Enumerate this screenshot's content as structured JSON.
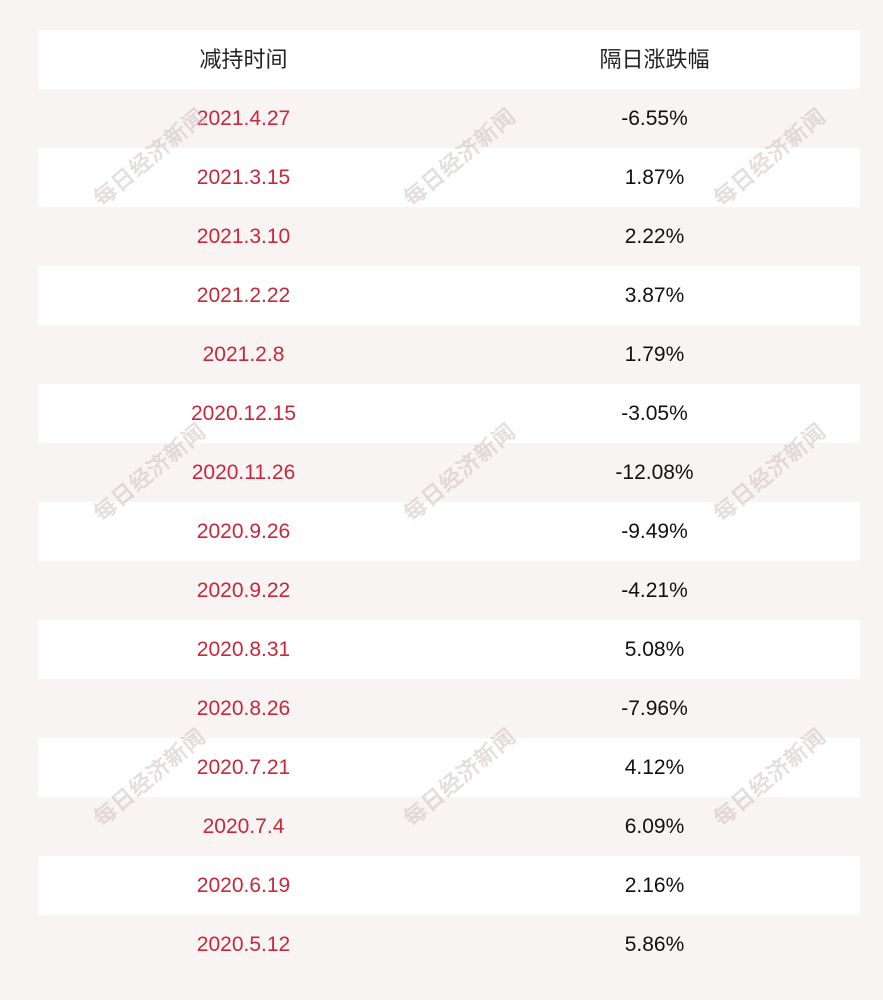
{
  "table": {
    "headers": {
      "date": "减持时间",
      "change": "隔日涨跌幅"
    },
    "rows": [
      {
        "date": "2021.4.27",
        "change": "-6.55%"
      },
      {
        "date": "2021.3.15",
        "change": "1.87%"
      },
      {
        "date": "2021.3.10",
        "change": "2.22%"
      },
      {
        "date": "2021.2.22",
        "change": "3.87%"
      },
      {
        "date": "2021.2.8",
        "change": "1.79%"
      },
      {
        "date": "2020.12.15",
        "change": "-3.05%"
      },
      {
        "date": "2020.11.26",
        "change": "-12.08%"
      },
      {
        "date": "2020.9.26",
        "change": "-9.49%"
      },
      {
        "date": "2020.9.22",
        "change": "-4.21%"
      },
      {
        "date": "2020.8.31",
        "change": "5.08%"
      },
      {
        "date": "2020.8.26",
        "change": "-7.96%"
      },
      {
        "date": "2020.7.21",
        "change": "4.12%"
      },
      {
        "date": "2020.7.4",
        "change": "6.09%"
      },
      {
        "date": "2020.6.19",
        "change": "2.16%"
      },
      {
        "date": "2020.5.12",
        "change": "5.86%"
      }
    ]
  },
  "colors": {
    "date_text": "#c8283a",
    "value_text": "#111111",
    "background": "#f9f4f4"
  },
  "watermark": {
    "text": "每日经济新闻"
  }
}
